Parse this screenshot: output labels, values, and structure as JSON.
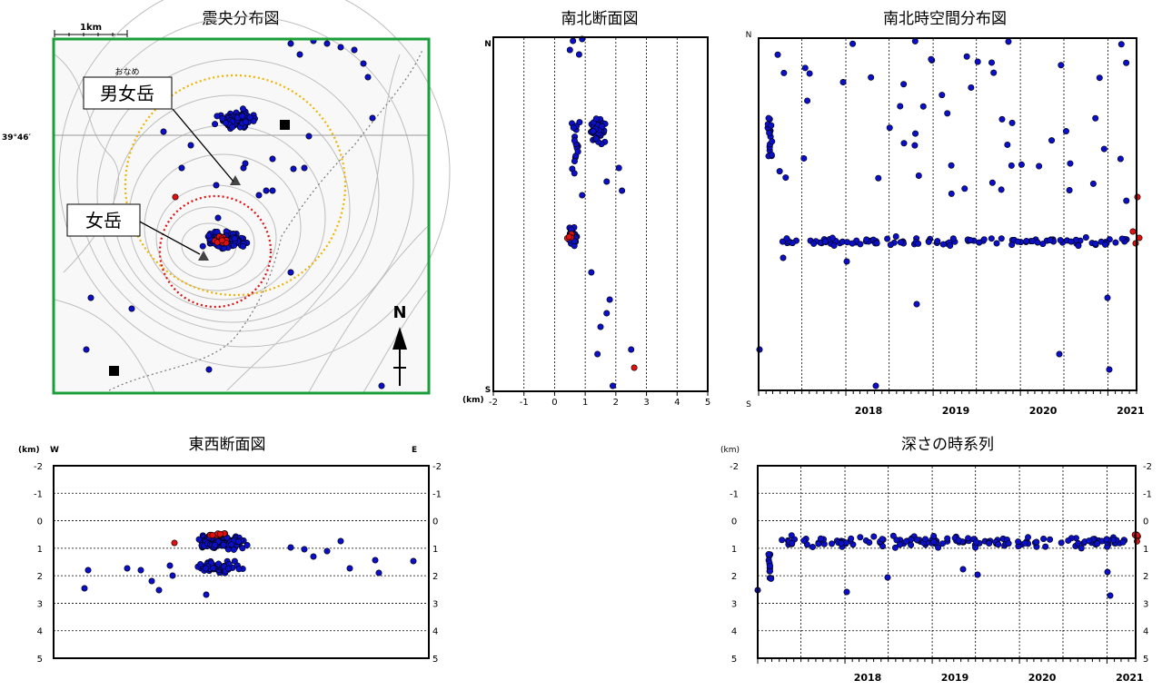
{
  "colors": {
    "frame_map": "#1a9e3a",
    "dot": "#0b10c8",
    "dot_recent": "#e01010",
    "ring_outer": "#f0b400",
    "ring_inner": "#e01010",
    "contour": "#bdbdbd",
    "map_bg": "#f8f8f8",
    "gridline": "#000000"
  },
  "map": {
    "title": "震央分布図",
    "scale_label": "1km",
    "lat_label": "39°46′",
    "north_label": "N",
    "callouts": [
      {
        "name": "男女岳",
        "ruby": "おなめ"
      },
      {
        "name": "女岳",
        "ruby": ""
      }
    ],
    "stations_icon": "square-marker",
    "summit_icon": "triangle-marker"
  },
  "chart_data": [
    {
      "id": "ns-section",
      "type": "scatter",
      "title": "南北断面図",
      "x_axis_unit": "(km)",
      "x_ticks": [
        "-2",
        "-1",
        "0",
        "1",
        "2",
        "3",
        "4",
        "5"
      ],
      "xlim": [
        -2,
        5
      ],
      "top_label": "N",
      "bottom_label": "S",
      "note": "x = depth (km); y = north-south position (relative 0=S .. 1=N)"
    },
    {
      "id": "ns-timespace",
      "type": "scatter",
      "title": "南北時空間分布図",
      "top_label": "N",
      "bottom_label": "S",
      "year_labels": [
        "2018",
        "2019",
        "2020",
        "2021"
      ],
      "xlim": [
        "2017-01-01",
        "2021-05-01"
      ]
    },
    {
      "id": "ew-section",
      "type": "scatter",
      "title": "東西断面図",
      "y_axis_unit": "(km)",
      "left_label": "W",
      "right_label": "E",
      "y_ticks": [
        "-2",
        "-1",
        "0",
        "1",
        "2",
        "3",
        "4",
        "5"
      ],
      "ylim": [
        -2,
        5
      ]
    },
    {
      "id": "depth-series",
      "type": "scatter",
      "title": "深さの時系列",
      "y_axis_unit": "(km)",
      "y_ticks": [
        "-2",
        "-1",
        "0",
        "1",
        "2",
        "3",
        "4",
        "5"
      ],
      "ylim": [
        -2,
        5
      ],
      "year_labels": [
        "2018",
        "2019",
        "2020",
        "2021"
      ],
      "xlim": [
        "2017-01-01",
        "2021-05-01"
      ]
    }
  ]
}
